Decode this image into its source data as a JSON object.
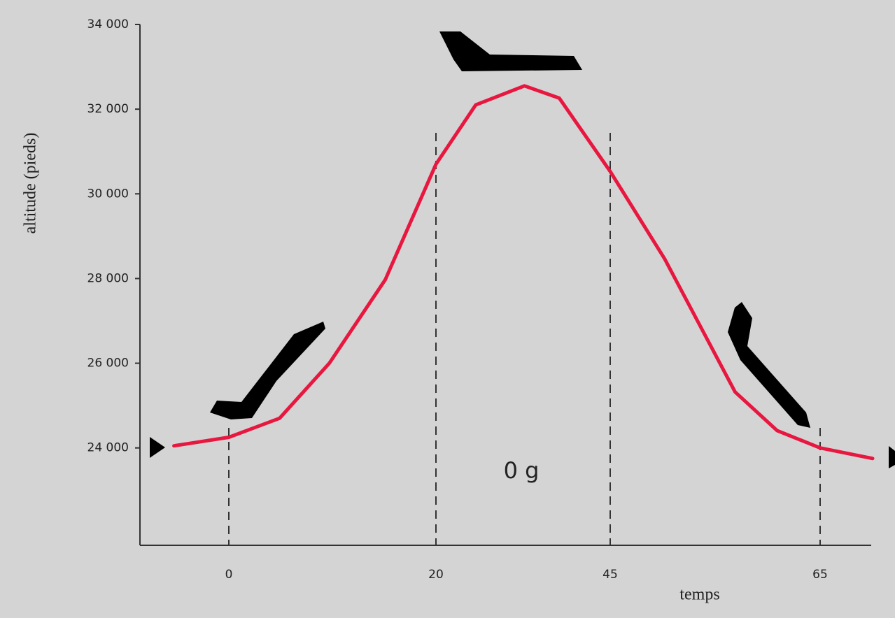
{
  "chart_data": {
    "type": "line",
    "x_label": "temps",
    "y_label": "altitude (pieds)",
    "annotation": "0 g",
    "xlim": [
      -8.6,
      70
    ],
    "xticks": [
      0,
      20,
      45,
      65
    ],
    "ylim": [
      21700,
      34000
    ],
    "yticks": [
      {
        "value": 24000,
        "label": "24 000"
      },
      {
        "value": 26000,
        "label": "26 000"
      },
      {
        "value": 28000,
        "label": "28 000"
      },
      {
        "value": 30000,
        "label": "30 000"
      },
      {
        "value": 32000,
        "label": "32 000"
      },
      {
        "value": 34000,
        "label": "34 000"
      }
    ],
    "x": [
      -5.3,
      0,
      4.9,
      9.7,
      15.1,
      20,
      25.7,
      32.7,
      37.7,
      45,
      50.2,
      56.9,
      60.9,
      65,
      70
    ],
    "series": [
      {
        "color": "#e8173f",
        "values": [
          24050,
          24250,
          24700,
          26000,
          27970,
          30700,
          32100,
          32550,
          32260,
          30530,
          28460,
          25320,
          24410,
          24000,
          23750
        ]
      }
    ]
  }
}
